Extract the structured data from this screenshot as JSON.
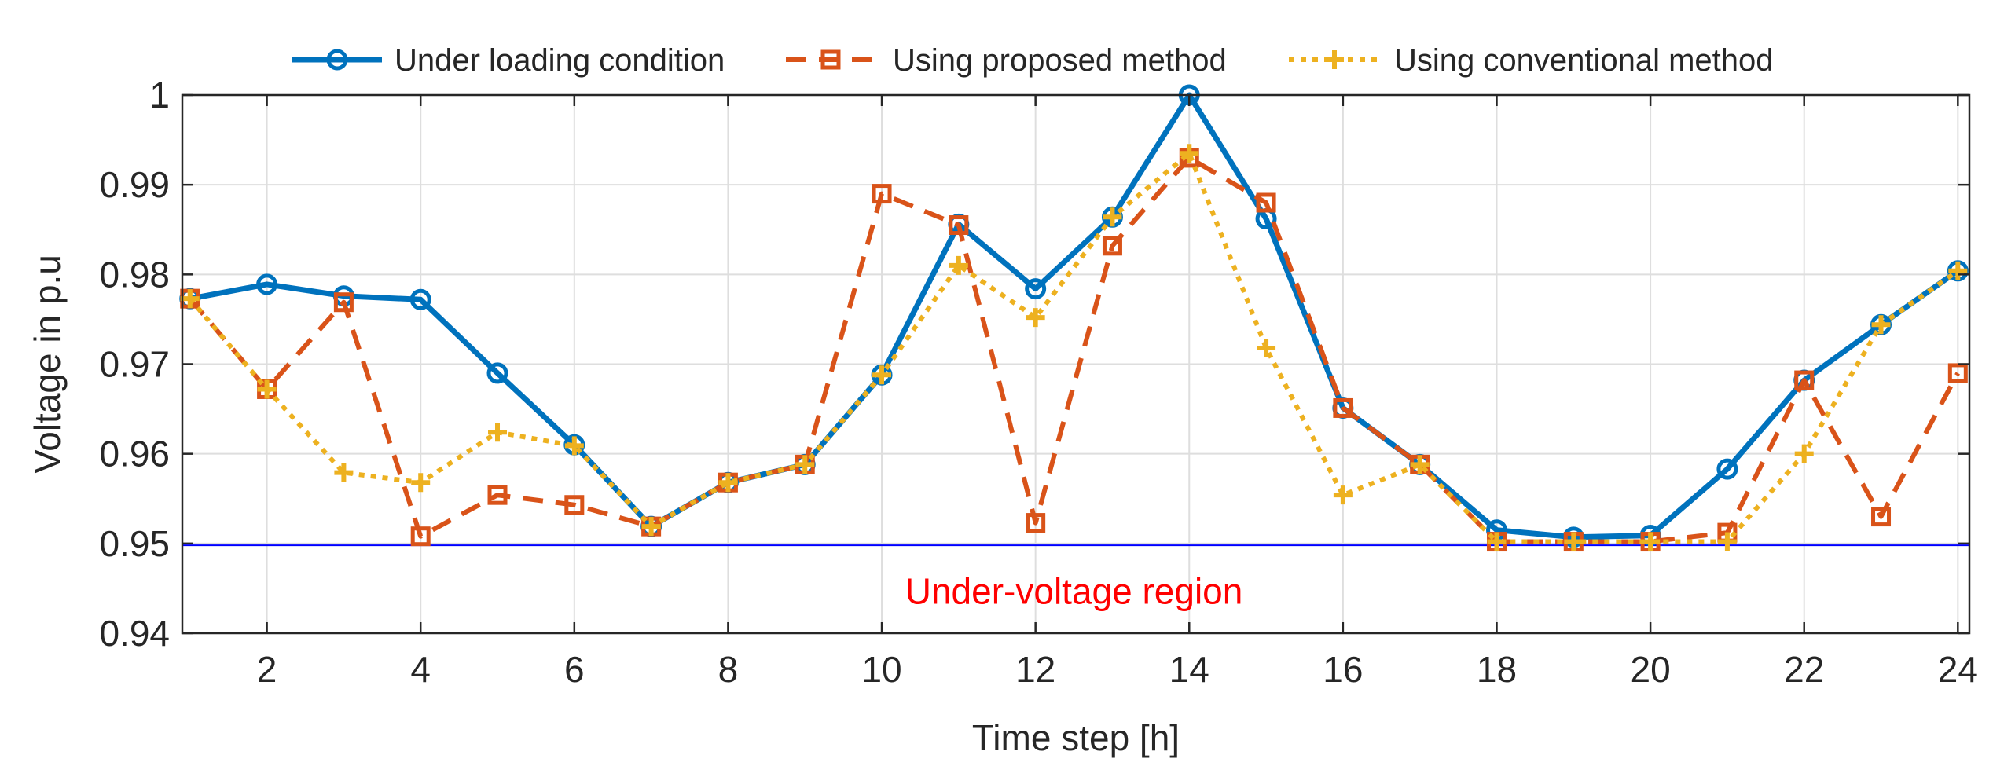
{
  "chart_data": {
    "type": "line",
    "title": "",
    "xlabel": "Time step [h]",
    "ylabel": "Voltage in p.u",
    "xlim": [
      0.9,
      24.15
    ],
    "ylim": [
      0.94,
      1.0
    ],
    "xticks": [
      2,
      4,
      6,
      8,
      10,
      12,
      14,
      16,
      18,
      20,
      22,
      24
    ],
    "xtick_labels": [
      "2",
      "4",
      "6",
      "8",
      "10",
      "12",
      "14",
      "16",
      "18",
      "20",
      "22",
      "24"
    ],
    "yticks": [
      0.94,
      0.95,
      0.96,
      0.97,
      0.98,
      0.99,
      1.0
    ],
    "ytick_labels": [
      "0.94",
      "0.95",
      "0.96",
      "0.97",
      "0.98",
      "0.99",
      "1"
    ],
    "grid": true,
    "legend_position": "top-center",
    "x": [
      1,
      2,
      3,
      4,
      5,
      6,
      7,
      8,
      9,
      10,
      11,
      12,
      13,
      14,
      15,
      16,
      17,
      18,
      19,
      20,
      21,
      22,
      23,
      24
    ],
    "series": [
      {
        "name": "Under loading condition",
        "color": "#0072BD",
        "style": "solid",
        "marker": "circle",
        "values": [
          0.9773,
          0.9789,
          0.9776,
          0.9772,
          0.969,
          0.961,
          0.9519,
          0.9568,
          0.9588,
          0.9688,
          0.9856,
          0.9784,
          0.9864,
          1.0,
          0.9862,
          0.9651,
          0.9588,
          0.9515,
          0.9507,
          0.9509,
          0.9583,
          0.9682,
          0.9744,
          0.9804
        ]
      },
      {
        "name": "Using proposed method",
        "color": "#D95319",
        "style": "dashed",
        "marker": "square",
        "values": [
          0.9773,
          0.9672,
          0.9769,
          0.9508,
          0.9554,
          0.9543,
          0.9519,
          0.9568,
          0.9588,
          0.989,
          0.9855,
          0.9523,
          0.9832,
          0.993,
          0.988,
          0.9651,
          0.9588,
          0.9502,
          0.9502,
          0.9502,
          0.9512,
          0.9682,
          0.953,
          0.969
        ]
      },
      {
        "name": "Using conventional method",
        "color": "#EDB120",
        "style": "dotted",
        "marker": "plus",
        "values": [
          0.9773,
          0.9672,
          0.9579,
          0.9568,
          0.9624,
          0.9609,
          0.9519,
          0.9568,
          0.9588,
          0.9688,
          0.981,
          0.9752,
          0.9864,
          0.9935,
          0.9718,
          0.9554,
          0.9588,
          0.9502,
          0.9502,
          0.9502,
          0.9502,
          0.96,
          0.9744,
          0.9804
        ]
      }
    ],
    "reference_line": {
      "y": 0.9498,
      "color": "#0000FF"
    },
    "annotations": [
      {
        "text": "Under-voltage region",
        "x": 12.5,
        "y": 0.9445,
        "color": "#FF0000"
      }
    ]
  }
}
